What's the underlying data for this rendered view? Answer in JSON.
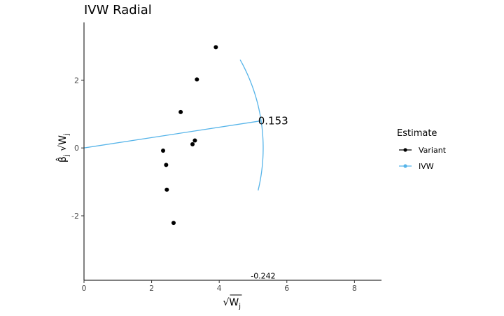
{
  "chart_data": {
    "type": "scatter",
    "title": "IVW Radial",
    "xlabel_symbol": "√W",
    "xlabel_subscript": "j",
    "ylabel_symbol": "β̂",
    "ylabel_subscript": "j",
    "ylabel_root": "√W",
    "ylabel_root_subscript": "j",
    "xlim": [
      0,
      8.8
    ],
    "ylim": [
      -3.9,
      3.7
    ],
    "x_ticks": [
      0,
      2,
      4,
      6,
      8
    ],
    "x_tick_labels": [
      "0",
      "2",
      "4",
      "6",
      "8"
    ],
    "y_ticks": [
      -2,
      0,
      2
    ],
    "y_tick_labels": [
      "-2",
      "0",
      "2"
    ],
    "grid": false,
    "legend_position": "right",
    "legend_title": "Estimate",
    "series": [
      {
        "name": "Variant",
        "color": "#000000",
        "points": [
          {
            "x": 3.9,
            "y": 2.97
          },
          {
            "x": 3.34,
            "y": 2.02
          },
          {
            "x": 2.86,
            "y": 1.06
          },
          {
            "x": 3.28,
            "y": 0.22
          },
          {
            "x": 3.21,
            "y": 0.11
          },
          {
            "x": 2.34,
            "y": -0.08
          },
          {
            "x": 2.43,
            "y": -0.5
          },
          {
            "x": 2.45,
            "y": -1.23
          },
          {
            "x": 2.65,
            "y": -2.21
          }
        ]
      },
      {
        "name": "IVW",
        "color": "#56B4E9",
        "line": {
          "x": [
            0,
            5.24
          ],
          "y": [
            0,
            0.8
          ]
        },
        "arc": {
          "radius": 5.3,
          "from_y": -1.25,
          "to_y": 2.6
        }
      }
    ],
    "annotations": [
      {
        "text": "0.153",
        "x": 5.15,
        "y": 0.8,
        "size": "large"
      },
      {
        "text": "-0.242",
        "x": 5.3,
        "y": -3.77,
        "size": "small"
      }
    ]
  }
}
